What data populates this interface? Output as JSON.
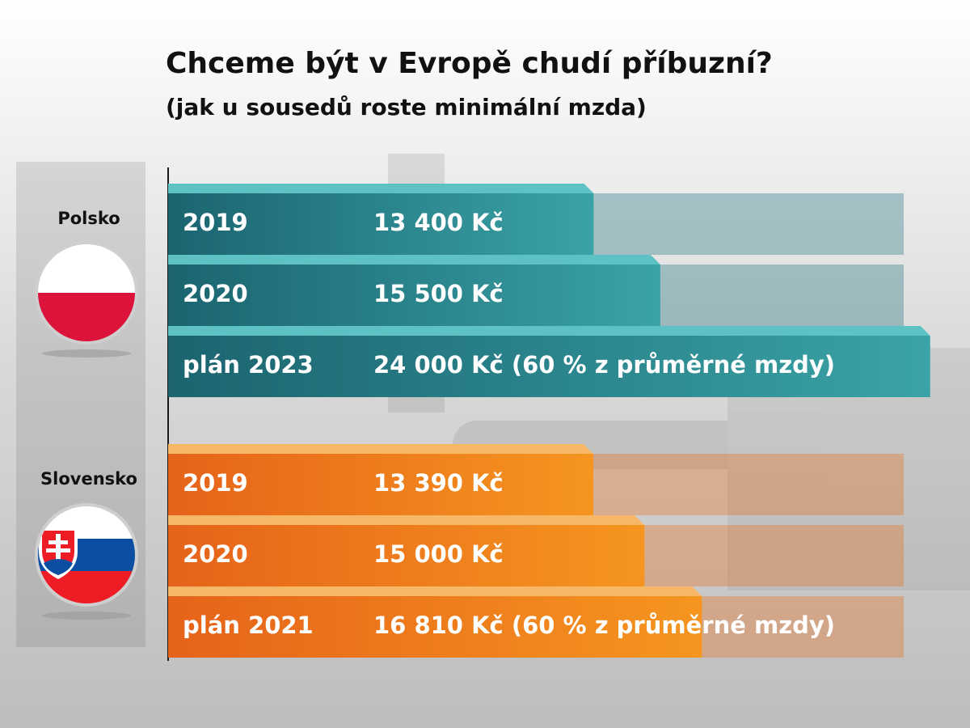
{
  "chart_data": {
    "type": "bar",
    "title": "Chceme být v Evropě chudí příbuzní?",
    "subtitle": "(jak u sousedů roste minimální mzda)",
    "xlim": [
      0,
      25000
    ],
    "groups": [
      {
        "name": "Polsko",
        "color": "#1f7480",
        "categories": [
          "2019",
          "2020",
          "plán 2023"
        ],
        "values": [
          13400,
          15500,
          24000
        ],
        "value_labels": [
          "13 400 Kč",
          "15 500 Kč",
          "24 000 Kč (60 % z průměrné mzdy)"
        ]
      },
      {
        "name": "Slovensko",
        "color": "#ec6d1a",
        "categories": [
          "2019",
          "2020",
          "plán 2021"
        ],
        "values": [
          13390,
          15000,
          16810
        ],
        "value_labels": [
          "13 390 Kč",
          "15 000 Kč",
          "16 810 Kč (60 % z průměrné mzdy)"
        ]
      }
    ]
  }
}
